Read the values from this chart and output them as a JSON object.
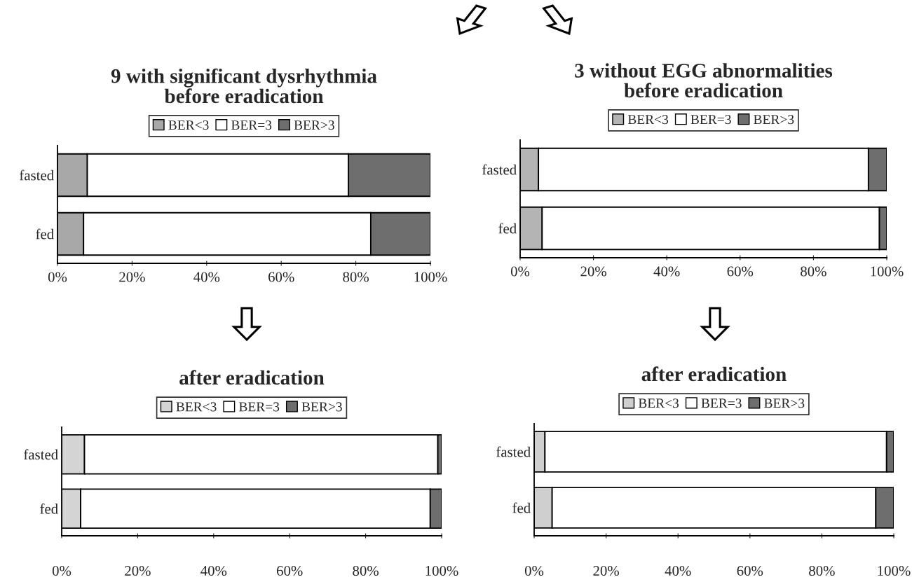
{
  "chart_data": [
    {
      "type": "bar",
      "title": "9 with significant dysrhythmia\nbefore eradication",
      "orientation": "horizontal",
      "stacked": true,
      "legend": "top",
      "categories": [
        "fasted",
        "fed"
      ],
      "xlim": [
        0,
        100
      ],
      "xticks": [
        {
          "value": 0,
          "label": "0%"
        },
        {
          "value": 20,
          "label": "20%"
        },
        {
          "value": 40,
          "label": "40%"
        },
        {
          "value": 60,
          "label": "60%"
        },
        {
          "value": 80,
          "label": "80%"
        },
        {
          "value": 100,
          "label": "100%"
        }
      ],
      "series": [
        {
          "name": "BER<3",
          "color": "#a8a8a8",
          "values": [
            8,
            7
          ]
        },
        {
          "name": "BER=3",
          "color": "#ffffff",
          "values": [
            70,
            77
          ]
        },
        {
          "name": "BER>3",
          "color": "#6e6e6e",
          "values": [
            22,
            16
          ]
        }
      ]
    },
    {
      "type": "bar",
      "title": "3 without EGG abnormalities\nbefore eradication",
      "orientation": "horizontal",
      "stacked": true,
      "legend": "top",
      "categories": [
        "fasted",
        "fed"
      ],
      "xlim": [
        0,
        100
      ],
      "xticks": [
        {
          "value": 0,
          "label": "0%"
        },
        {
          "value": 20,
          "label": "20%"
        },
        {
          "value": 40,
          "label": "40%"
        },
        {
          "value": 60,
          "label": "60%"
        },
        {
          "value": 80,
          "label": "80%"
        },
        {
          "value": 100,
          "label": "100%"
        }
      ],
      "series": [
        {
          "name": "BER<3",
          "color": "#b4b4b4",
          "values": [
            5,
            6
          ]
        },
        {
          "name": "BER=3",
          "color": "#ffffff",
          "values": [
            90,
            92
          ]
        },
        {
          "name": "BER>3",
          "color": "#6e6e6e",
          "values": [
            5,
            2
          ]
        }
      ]
    },
    {
      "type": "bar",
      "title": "after eradication",
      "orientation": "horizontal",
      "stacked": true,
      "legend": "top",
      "categories": [
        "fasted",
        "fed"
      ],
      "xlim": [
        0,
        100
      ],
      "xticks": [
        {
          "value": 0,
          "label": "0%"
        },
        {
          "value": 20,
          "label": "20%"
        },
        {
          "value": 40,
          "label": "40%"
        },
        {
          "value": 60,
          "label": "60%"
        },
        {
          "value": 80,
          "label": "80%"
        },
        {
          "value": 100,
          "label": "100%"
        }
      ],
      "series": [
        {
          "name": "BER<3",
          "color": "#d4d4d4",
          "values": [
            6,
            5
          ]
        },
        {
          "name": "BER=3",
          "color": "#ffffff",
          "values": [
            93,
            92
          ]
        },
        {
          "name": "BER>3",
          "color": "#6e6e6e",
          "values": [
            1,
            3
          ]
        }
      ]
    },
    {
      "type": "bar",
      "title": "after eradication",
      "orientation": "horizontal",
      "stacked": true,
      "legend": "top",
      "categories": [
        "fasted",
        "fed"
      ],
      "xlim": [
        0,
        100
      ],
      "xticks": [
        {
          "value": 0,
          "label": "0%"
        },
        {
          "value": 20,
          "label": "20%"
        },
        {
          "value": 40,
          "label": "40%"
        },
        {
          "value": 60,
          "label": "60%"
        },
        {
          "value": 80,
          "label": "80%"
        },
        {
          "value": 100,
          "label": "100%"
        }
      ],
      "series": [
        {
          "name": "BER<3",
          "color": "#cfcfcf",
          "values": [
            3,
            5
          ]
        },
        {
          "name": "BER=3",
          "color": "#ffffff",
          "values": [
            95,
            90
          ]
        },
        {
          "name": "BER>3",
          "color": "#6e6e6e",
          "values": [
            2,
            5
          ]
        }
      ]
    }
  ]
}
